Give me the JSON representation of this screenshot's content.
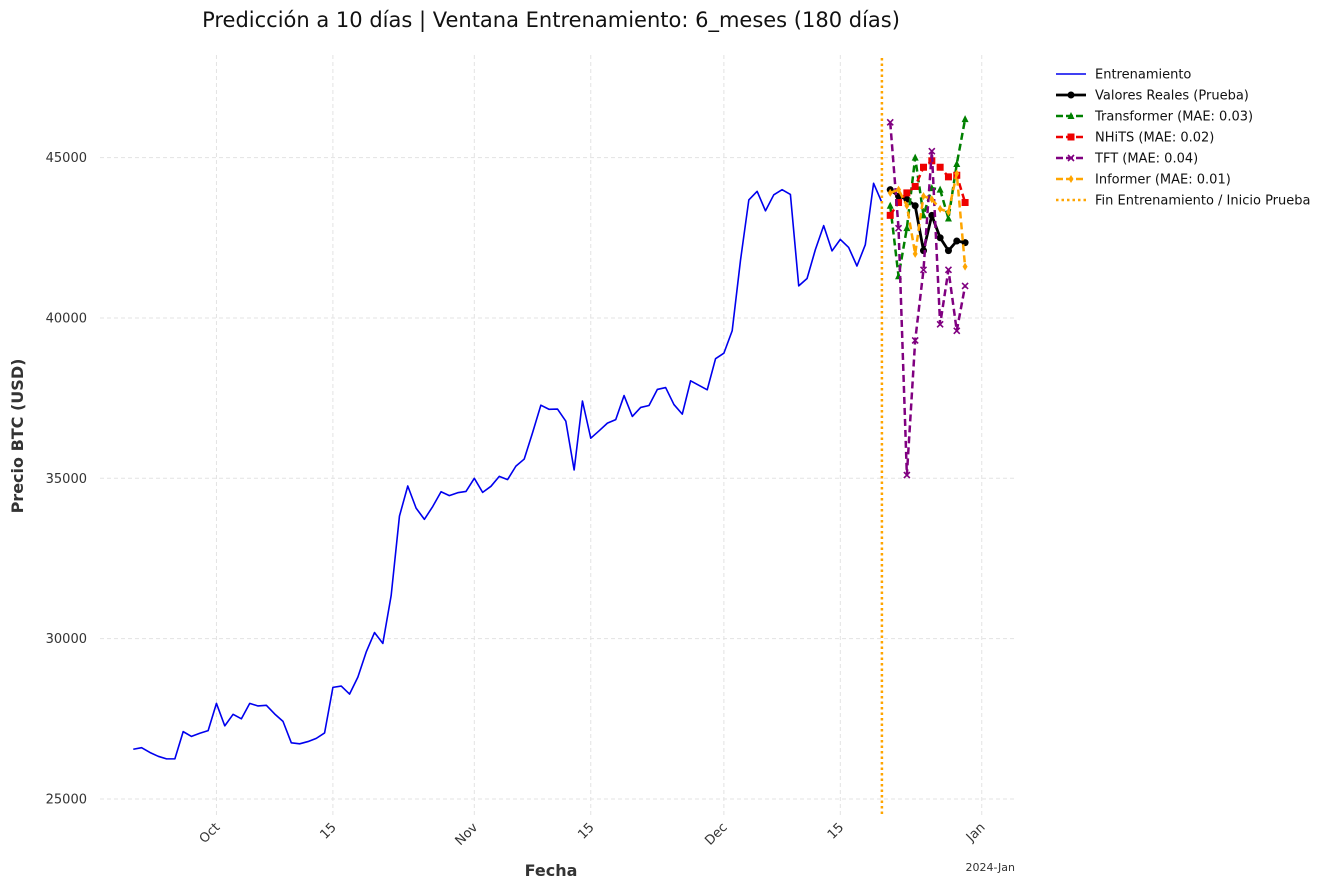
{
  "chart_data": {
    "type": "line",
    "title": "Predicción a 10 días | Ventana Entrenamiento: 6_meses (180 días)",
    "xlabel": "Fecha",
    "ylabel": "Precio BTC (USD)",
    "x_offset_label": "2024-Jan",
    "xlim": [
      "2023-09-17",
      "2024-01-05"
    ],
    "ylim": [
      24500,
      48200
    ],
    "y_ticks": [
      25000,
      30000,
      35000,
      40000,
      45000
    ],
    "x_ticks": [
      {
        "date": "2023-10-01",
        "label": "Oct"
      },
      {
        "date": "2023-10-15",
        "label": "15"
      },
      {
        "date": "2023-11-01",
        "label": "Nov"
      },
      {
        "date": "2023-11-15",
        "label": "15"
      },
      {
        "date": "2023-12-01",
        "label": "Dec"
      },
      {
        "date": "2023-12-15",
        "label": "15"
      },
      {
        "date": "2024-01-01",
        "label": "Jan"
      }
    ],
    "grid": true,
    "legend_position": "outside top-right",
    "vline": {
      "date": "2023-12-20",
      "label": "Fin Entrenamiento / Inicio Prueba",
      "color": "#ffa500"
    },
    "series": [
      {
        "name": "Entrenamiento",
        "color": "#0000ee",
        "style": "solid",
        "marker": "none",
        "start": "2023-09-21",
        "values": [
          26550,
          26600,
          26450,
          26330,
          26250,
          26250,
          27100,
          26950,
          27050,
          27130,
          27980,
          27280,
          27640,
          27500,
          27980,
          27900,
          27920,
          27650,
          27420,
          26750,
          26720,
          26790,
          26890,
          27060,
          28480,
          28520,
          28270,
          28800,
          29580,
          30190,
          29850,
          31340,
          33820,
          34760,
          34070,
          33720,
          34120,
          34580,
          34460,
          34550,
          34590,
          35000,
          34560,
          34750,
          35060,
          34960,
          35380,
          35600,
          36420,
          37280,
          37150,
          37160,
          36780,
          35260,
          37410,
          36250,
          36480,
          36720,
          36830,
          37580,
          36930,
          37210,
          37270,
          37770,
          37830,
          37300,
          37000,
          38040,
          37900,
          37760,
          38730,
          38900,
          39600,
          41800,
          43680,
          43950,
          43340,
          43840,
          44000,
          43850,
          41000,
          41230,
          42130,
          42880,
          42090,
          42450,
          42200,
          41620,
          42280,
          44200,
          43600
        ]
      },
      {
        "name": "Valores Reales (Prueba)",
        "color": "#000000",
        "style": "solid",
        "marker": "circle",
        "start": "2023-12-21",
        "values": [
          44000,
          43800,
          43700,
          43500,
          42100,
          43200,
          42500,
          42100,
          42400,
          42350
        ]
      },
      {
        "name": "Transformer (MAE: 0.03)",
        "color": "#008000",
        "style": "dashed",
        "marker": "triangle",
        "start": "2023-12-21",
        "values": [
          43500,
          41300,
          42800,
          45000,
          43200,
          44050,
          44000,
          43100,
          44800,
          46200
        ]
      },
      {
        "name": "NHiTS (MAE: 0.02)",
        "color": "#ee0000",
        "style": "dashed",
        "marker": "square",
        "start": "2023-12-21",
        "values": [
          43200,
          43600,
          43900,
          44100,
          44700,
          44900,
          44700,
          44400,
          44450,
          43600
        ]
      },
      {
        "name": "TFT (MAE: 0.04)",
        "color": "#800080",
        "style": "dashed",
        "marker": "x",
        "start": "2023-12-21",
        "values": [
          46100,
          42800,
          35100,
          39300,
          41500,
          45200,
          39800,
          41500,
          39600,
          41000
        ]
      },
      {
        "name": "Informer (MAE: 0.01)",
        "color": "#ffa500",
        "style": "dashed",
        "marker": "diamond",
        "start": "2023-12-21",
        "values": [
          43900,
          44000,
          43500,
          42000,
          43800,
          43700,
          43400,
          43300,
          44500,
          41600
        ]
      }
    ]
  }
}
